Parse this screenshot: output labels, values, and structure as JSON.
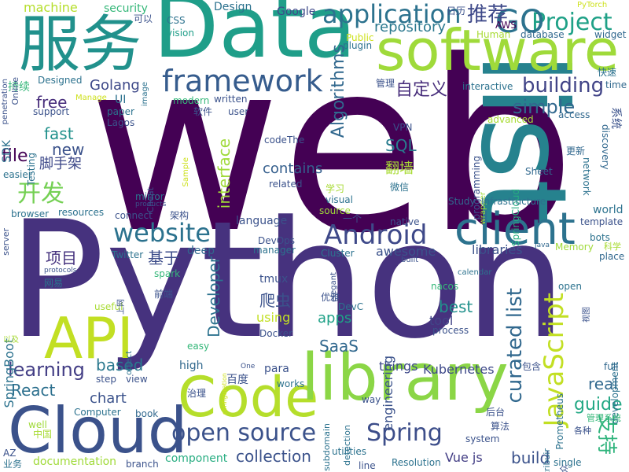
{
  "palette": {
    "purple_dark": "#440154",
    "indigo": "#3b528b",
    "blue": "#31688e",
    "teal": "#21918c",
    "green": "#35b779",
    "lime": "#90d743",
    "yellow": "#cde11d"
  },
  "words": [
    {
      "text": "web",
      "color": "#440154"
    },
    {
      "text": "Python",
      "color": "#46327e"
    },
    {
      "text": "list",
      "color": "#26828e"
    },
    {
      "text": "Data",
      "color": "#1f9e89"
    },
    {
      "text": "software",
      "color": "#9fda3a"
    },
    {
      "text": "服务",
      "color": "#21918c"
    },
    {
      "text": "Code",
      "color": "#b5de2b"
    },
    {
      "text": "library",
      "color": "#8bd646"
    },
    {
      "text": "Cloud",
      "color": "#3b528b"
    },
    {
      "text": "API",
      "color": "#c2df23"
    },
    {
      "text": "client",
      "color": "#2c728e"
    },
    {
      "text": "framework",
      "color": "#365c8d"
    },
    {
      "text": "application",
      "color": "#2c728e"
    },
    {
      "text": "Project",
      "color": "#1fa187"
    },
    {
      "text": "GO",
      "color": "#2c728e"
    },
    {
      "text": "推荐",
      "color": "#3e4989"
    },
    {
      "text": "Algorithms",
      "color": "#31688e"
    },
    {
      "text": "repository",
      "color": "#2a788e"
    },
    {
      "text": "自定义",
      "color": "#472d7b"
    },
    {
      "text": "building",
      "color": "#414487"
    },
    {
      "text": "simple",
      "color": "#31688e"
    },
    {
      "text": "Golang",
      "color": "#3e4989"
    },
    {
      "text": "free",
      "color": "#472d7b"
    },
    {
      "text": "fast",
      "color": "#21918c"
    },
    {
      "text": "new",
      "color": "#3b528b"
    },
    {
      "text": "file",
      "color": "#440154"
    },
    {
      "text": "脚手架",
      "color": "#3e4989"
    },
    {
      "text": "开发",
      "color": "#75d054"
    },
    {
      "text": "website",
      "color": "#2c728e"
    },
    {
      "text": "Android",
      "color": "#3e4989"
    },
    {
      "text": "SQL",
      "color": "#287c8e"
    },
    {
      "text": "contains",
      "color": "#355f8d"
    },
    {
      "text": "interface",
      "color": "#a0da39"
    },
    {
      "text": "翻墙",
      "color": "#a8db34"
    },
    {
      "text": "项目",
      "color": "#46337f"
    },
    {
      "text": "基于",
      "color": "#3d4d8a"
    },
    {
      "text": "language",
      "color": "#3b528b"
    },
    {
      "text": "Developer",
      "color": "#2c728e"
    },
    {
      "text": "JavaScript",
      "color": "#c2df23"
    },
    {
      "text": "curated list",
      "color": "#31688e"
    },
    {
      "text": "best",
      "color": "#21918c"
    },
    {
      "text": "apps",
      "color": "#1fa187"
    },
    {
      "text": "爬虫",
      "color": "#3b528b"
    },
    {
      "text": "SaaS",
      "color": "#31688e"
    },
    {
      "text": "learning",
      "color": "#433e85"
    },
    {
      "text": "based",
      "color": "#2a788e"
    },
    {
      "text": "React",
      "color": "#2d708e"
    },
    {
      "text": "chart",
      "color": "#3b528b"
    },
    {
      "text": "things",
      "color": "#3e4989"
    },
    {
      "text": "Kubernetes",
      "color": "#3e4989"
    },
    {
      "text": "real",
      "color": "#31688e"
    },
    {
      "text": "guide",
      "color": "#22a884"
    },
    {
      "text": "open source",
      "color": "#3b528b"
    },
    {
      "text": "Spring",
      "color": "#3d4e8a"
    },
    {
      "text": "collection",
      "color": "#3b528b"
    },
    {
      "text": "Vue js",
      "color": "#433e85"
    },
    {
      "text": "build",
      "color": "#3b528b"
    },
    {
      "text": "支持",
      "color": "#2fb47c"
    },
    {
      "text": "documentation",
      "color": "#a0da39"
    },
    {
      "text": "component",
      "color": "#27ad81"
    },
    {
      "text": "tool",
      "color": "#414487"
    },
    {
      "text": "engineering",
      "color": "#3b528b"
    },
    {
      "text": "libraries",
      "color": "#3b528b"
    },
    {
      "text": "awesome",
      "color": "#3b528b"
    },
    {
      "text": "world",
      "color": "#2c728e"
    },
    {
      "text": "system",
      "color": "#3b528b"
    },
    {
      "text": "machine",
      "color": "#b5de2b"
    },
    {
      "text": "security",
      "color": "#35b779"
    },
    {
      "text": "可以",
      "color": "#3b528b"
    },
    {
      "text": "CSS",
      "color": "#2c728e"
    },
    {
      "text": "vision",
      "color": "#1f9e89"
    },
    {
      "text": "Design",
      "color": "#2c728e"
    },
    {
      "text": "Google",
      "color": "#3e4989"
    },
    {
      "text": "日历",
      "color": "#3b528b"
    },
    {
      "text": "AWS",
      "color": "#440154"
    },
    {
      "text": "Public",
      "color": "#cde11d"
    },
    {
      "text": "plugin",
      "color": "#2c728e"
    },
    {
      "text": "Human",
      "color": "#a8db34"
    },
    {
      "text": "database",
      "color": "#31688e"
    },
    {
      "text": "widget",
      "color": "#31688e"
    },
    {
      "text": "快速",
      "color": "#2c728e"
    },
    {
      "text": "time",
      "color": "#31688e"
    },
    {
      "text": "系统",
      "color": "#3b528b"
    },
    {
      "text": "管理",
      "color": "#3b528b"
    },
    {
      "text": "interactive",
      "color": "#2c728e"
    },
    {
      "text": "programming",
      "color": "#3b528b"
    },
    {
      "text": "advanced",
      "color": "#a8db34"
    },
    {
      "text": "access",
      "color": "#31688e"
    },
    {
      "text": "discovery",
      "color": "#31688e"
    },
    {
      "text": "更新",
      "color": "#31688e"
    },
    {
      "text": "network",
      "color": "#2c728e"
    },
    {
      "text": "PyTorch",
      "color": "#cde11d"
    },
    {
      "text": "Sheet",
      "color": "#31688e"
    },
    {
      "text": "SpringCloud",
      "color": "#27ad81"
    },
    {
      "text": "wrapper",
      "color": "#a0da39"
    },
    {
      "text": "VPN",
      "color": "#3b528b"
    },
    {
      "text": "codeThe",
      "color": "#3b528b"
    },
    {
      "text": "微信",
      "color": "#2c728e"
    },
    {
      "text": "related",
      "color": "#3b528b"
    },
    {
      "text": "学习",
      "color": "#a8db34"
    },
    {
      "text": "visual",
      "color": "#2c728e"
    },
    {
      "text": "source",
      "color": "#a0da39"
    },
    {
      "text": "一个",
      "color": "#3b528b"
    },
    {
      "text": "native",
      "color": "#3b528b"
    },
    {
      "text": "Study",
      "color": "#31688e"
    },
    {
      "text": "Infrastructure",
      "color": "#2c728e"
    },
    {
      "text": "template",
      "color": "#3b528b"
    },
    {
      "text": "bots",
      "color": "#2c728e"
    },
    {
      "text": "place",
      "color": "#31688e"
    },
    {
      "text": "科学",
      "color": "#a8db34"
    },
    {
      "text": "Memory",
      "color": "#a0da39"
    },
    {
      "text": "Java",
      "color": "#31688e"
    },
    {
      "text": "calendar",
      "color": "#2c728e"
    },
    {
      "text": "built",
      "color": "#3b528b"
    },
    {
      "text": "Cluster",
      "color": "#2c728e"
    },
    {
      "text": "DevOps",
      "color": "#3b528b"
    },
    {
      "text": "manager",
      "color": "#2c728e"
    },
    {
      "text": "deep",
      "color": "#31688e"
    },
    {
      "text": "Twitter",
      "color": "#2c728e"
    },
    {
      "text": "spark",
      "color": "#35b779"
    },
    {
      "text": "网易",
      "color": "#2c728e"
    },
    {
      "text": "SpringBoot",
      "color": "#2c728e"
    },
    {
      "text": "protocols",
      "color": "#3b528b"
    },
    {
      "text": "tmux",
      "color": "#3b528b"
    },
    {
      "text": "using",
      "color": "#c2df23"
    },
    {
      "text": "Docker",
      "color": "#3b528b"
    },
    {
      "text": "优雅",
      "color": "#3b528b"
    },
    {
      "text": "elegant",
      "color": "#3b528b"
    },
    {
      "text": "DevC",
      "color": "#2c728e"
    },
    {
      "text": "nacos",
      "color": "#35b779"
    },
    {
      "text": "process",
      "color": "#3b528b"
    },
    {
      "text": "open",
      "color": "#2c728e"
    },
    {
      "text": "development",
      "color": "#2c728e"
    },
    {
      "text": "视图",
      "color": "#3b528b"
    },
    {
      "text": "Prometheus",
      "color": "#2c728e"
    },
    {
      "text": "包含",
      "color": "#3b528b"
    },
    {
      "text": "full",
      "color": "#31688e"
    },
    {
      "text": "管理系统",
      "color": "#35b779"
    },
    {
      "text": "各种",
      "color": "#3b528b"
    },
    {
      "text": "contribuir",
      "color": "#2c728e"
    },
    {
      "text": "公众",
      "color": "#3b528b"
    },
    {
      "text": "single",
      "color": "#2c728e"
    },
    {
      "text": "算法",
      "color": "#3b528b"
    },
    {
      "text": "后台",
      "color": "#3b528b"
    },
    {
      "text": "Resolution",
      "color": "#2c728e"
    },
    {
      "text": "utilities",
      "color": "#2c728e"
    },
    {
      "text": "line",
      "color": "#3b528b"
    },
    {
      "text": "branch",
      "color": "#3b528b"
    },
    {
      "text": "业务",
      "color": "#2c728e"
    },
    {
      "text": "AZ",
      "color": "#3b528b"
    },
    {
      "text": "中国",
      "color": "#a8db34"
    },
    {
      "text": "well",
      "color": "#a0da39"
    },
    {
      "text": "Computer",
      "color": "#2c728e"
    },
    {
      "text": "book",
      "color": "#31688e"
    },
    {
      "text": "治理",
      "color": "#3b528b"
    },
    {
      "text": "works",
      "color": "#2c728e"
    },
    {
      "text": "subdomain",
      "color": "#2c728e"
    },
    {
      "text": "detection",
      "color": "#2c728e"
    },
    {
      "text": "way",
      "color": "#3b528b"
    },
    {
      "text": "para",
      "color": "#3b528b"
    },
    {
      "text": "百度",
      "color": "#3b528b"
    },
    {
      "text": "One",
      "color": "#3b528b"
    },
    {
      "text": "configuration",
      "color": "#cde11d"
    },
    {
      "text": "high",
      "color": "#31688e"
    },
    {
      "text": "step",
      "color": "#3b528b"
    },
    {
      "text": "view",
      "color": "#3b528b"
    },
    {
      "text": "easy",
      "color": "#35b779"
    },
    {
      "text": "object",
      "color": "#2c728e"
    },
    {
      "text": "useful",
      "color": "#a8db34"
    },
    {
      "text": "上网",
      "color": "#3b528b"
    },
    {
      "text": "前端",
      "color": "#3b528b"
    },
    {
      "text": "以及",
      "color": "#a8db34"
    },
    {
      "text": "products",
      "color": "#3b528b"
    },
    {
      "text": "架构",
      "color": "#3b528b"
    },
    {
      "text": "mirror",
      "color": "#2c728e"
    },
    {
      "text": "connect",
      "color": "#3b528b"
    },
    {
      "text": "resources",
      "color": "#2c728e"
    },
    {
      "text": "browser",
      "color": "#2c728e"
    },
    {
      "text": "server",
      "color": "#3b528b"
    },
    {
      "text": "easier",
      "color": "#2c728e"
    },
    {
      "text": "Cheat",
      "color": "#3b528b"
    },
    {
      "text": "Sample",
      "color": "#cde11d"
    },
    {
      "text": "Lagos",
      "color": "#3b528b"
    },
    {
      "text": "软件",
      "color": "#3b528b"
    },
    {
      "text": "user",
      "color": "#3b528b"
    },
    {
      "text": "written",
      "color": "#3b528b"
    },
    {
      "text": "modern",
      "color": "#35b779"
    },
    {
      "text": "paper",
      "color": "#2c728e"
    },
    {
      "text": "Manage",
      "color": "#cde11d"
    },
    {
      "text": "UI",
      "color": "#2c728e"
    },
    {
      "text": "support",
      "color": "#3b528b"
    },
    {
      "text": "Designed",
      "color": "#2c728e"
    },
    {
      "text": "Testing",
      "color": "#2c728e"
    },
    {
      "text": "SDK",
      "color": "#2c728e"
    },
    {
      "text": "持续",
      "color": "#35b779"
    },
    {
      "text": "Online",
      "color": "#3b528b"
    },
    {
      "text": "penetration",
      "color": "#3b528b"
    },
    {
      "text": "image",
      "color": "#2c728e"
    }
  ]
}
